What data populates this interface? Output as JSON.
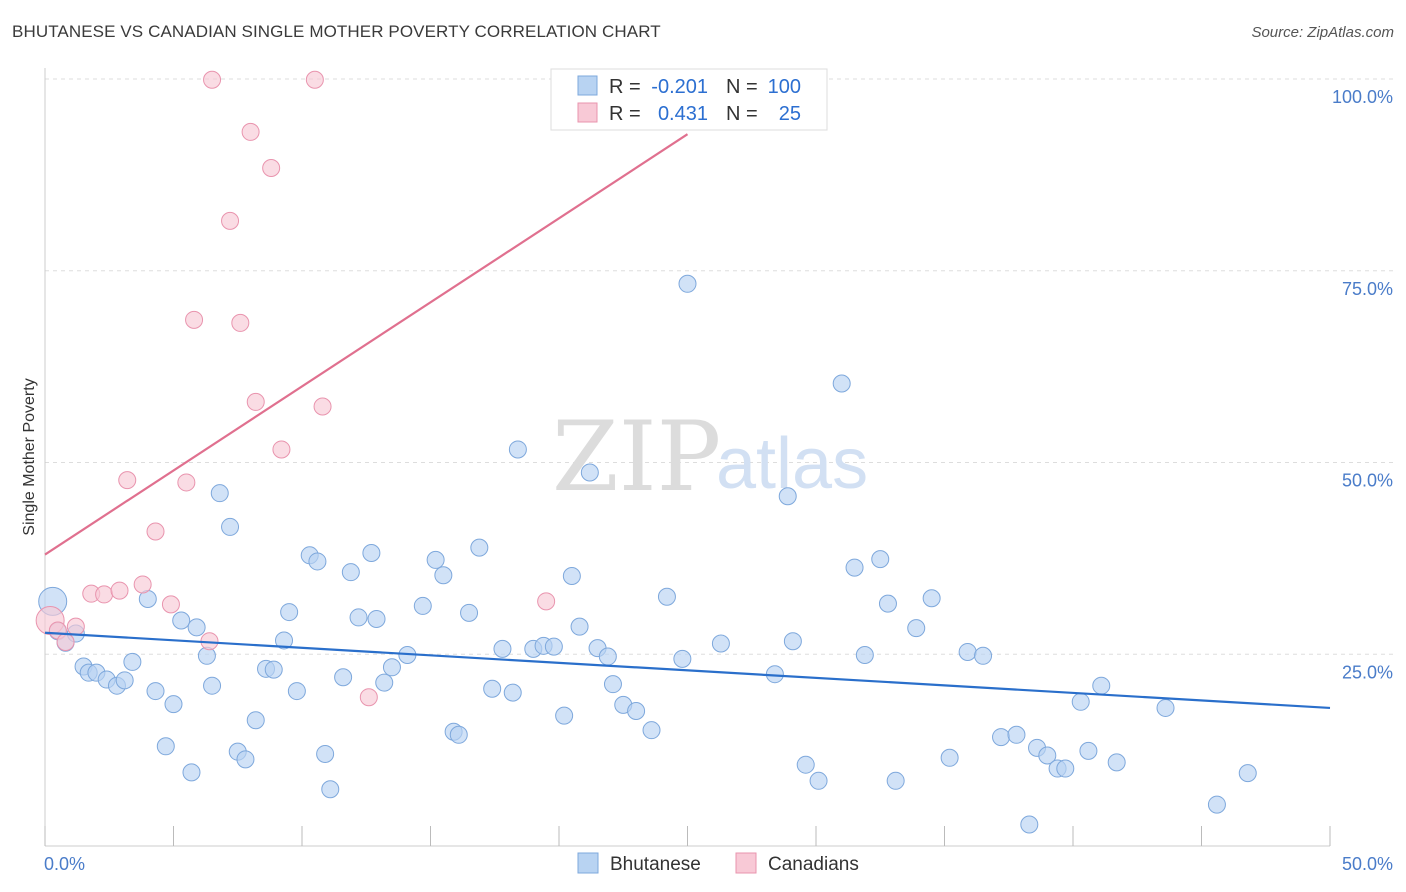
{
  "title": "BHUTANESE VS CANADIAN SINGLE MOTHER POVERTY CORRELATION CHART",
  "source": "Source: ZipAtlas.com",
  "watermark": {
    "zip": "ZIP",
    "atlas": "atlas"
  },
  "colors": {
    "blue_fill": "#b8d3f2",
    "blue_stroke": "#7ea8dc",
    "blue_line": "#2a6fcb",
    "pink_fill": "#f8c9d6",
    "pink_stroke": "#e994ae",
    "pink_line": "#e0708f",
    "grid": "#dddddd",
    "tick_text": "#4a7cc9"
  },
  "legend": {
    "rows": [
      {
        "r_label": "R =",
        "r_value": "-0.201",
        "n_label": "N =",
        "n_value": "100"
      },
      {
        "r_label": "R =",
        "r_value": "0.431",
        "n_label": "N =",
        "n_value": "25"
      }
    ]
  },
  "bottom_legend": [
    "Bhutanese",
    "Canadians"
  ],
  "chart_data": {
    "type": "scatter",
    "title": "BHUTANESE VS CANADIAN SINGLE MOTHER POVERTY CORRELATION CHART",
    "xlabel": "",
    "ylabel": "Single Mother Poverty",
    "xlim": [
      0,
      50
    ],
    "ylim": [
      0,
      100
    ],
    "x_tick_labels": [
      "0.0%",
      "50.0%"
    ],
    "y_ticks": [
      25,
      50,
      75,
      100
    ],
    "y_tick_labels": [
      "25.0%",
      "50.0%",
      "75.0%",
      "100.0%"
    ],
    "grid": true,
    "series": [
      {
        "name": "Bhutanese",
        "r": -0.201,
        "n": 100,
        "trend": {
          "x": [
            0,
            50
          ],
          "y": [
            27.8,
            18.0
          ]
        },
        "points": [
          [
            0.3,
            31.9
          ],
          [
            0.5,
            28.0
          ],
          [
            0.8,
            26.5
          ],
          [
            1.2,
            27.7
          ],
          [
            1.5,
            23.4
          ],
          [
            1.7,
            22.6
          ],
          [
            2.0,
            22.6
          ],
          [
            2.4,
            21.7
          ],
          [
            2.8,
            20.9
          ],
          [
            3.1,
            21.6
          ],
          [
            3.4,
            24.0
          ],
          [
            4.0,
            32.2
          ],
          [
            4.3,
            20.2
          ],
          [
            4.7,
            13.0
          ],
          [
            5.0,
            18.5
          ],
          [
            5.3,
            29.4
          ],
          [
            5.7,
            9.6
          ],
          [
            5.9,
            28.5
          ],
          [
            6.3,
            24.8
          ],
          [
            6.5,
            20.9
          ],
          [
            6.8,
            46.0
          ],
          [
            7.2,
            41.6
          ],
          [
            7.5,
            12.3
          ],
          [
            7.8,
            11.3
          ],
          [
            8.2,
            16.4
          ],
          [
            8.6,
            23.1
          ],
          [
            8.9,
            23.0
          ],
          [
            9.3,
            26.8
          ],
          [
            9.5,
            30.5
          ],
          [
            9.8,
            20.2
          ],
          [
            10.3,
            37.9
          ],
          [
            10.6,
            37.1
          ],
          [
            10.9,
            12.0
          ],
          [
            11.1,
            7.4
          ],
          [
            11.6,
            22.0
          ],
          [
            11.9,
            35.7
          ],
          [
            12.2,
            29.8
          ],
          [
            12.7,
            38.2
          ],
          [
            12.9,
            29.6
          ],
          [
            13.2,
            21.3
          ],
          [
            13.5,
            23.3
          ],
          [
            14.1,
            24.9
          ],
          [
            14.7,
            31.3
          ],
          [
            15.2,
            37.3
          ],
          [
            15.5,
            35.3
          ],
          [
            15.9,
            14.9
          ],
          [
            16.1,
            14.5
          ],
          [
            16.5,
            30.4
          ],
          [
            16.9,
            38.9
          ],
          [
            17.4,
            20.5
          ],
          [
            17.8,
            25.7
          ],
          [
            18.2,
            20.0
          ],
          [
            18.4,
            51.7
          ],
          [
            19.0,
            25.7
          ],
          [
            19.4,
            26.1
          ],
          [
            19.8,
            26.0
          ],
          [
            20.2,
            17.0
          ],
          [
            20.5,
            35.2
          ],
          [
            20.8,
            28.6
          ],
          [
            21.2,
            48.7
          ],
          [
            21.5,
            25.8
          ],
          [
            21.9,
            24.7
          ],
          [
            22.1,
            21.1
          ],
          [
            22.5,
            18.4
          ],
          [
            23.0,
            17.6
          ],
          [
            23.6,
            15.1
          ],
          [
            24.2,
            32.5
          ],
          [
            24.8,
            24.4
          ],
          [
            25.0,
            73.3
          ],
          [
            26.3,
            26.4
          ],
          [
            28.4,
            22.4
          ],
          [
            28.9,
            45.6
          ],
          [
            29.1,
            26.7
          ],
          [
            29.6,
            10.6
          ],
          [
            30.1,
            8.5
          ],
          [
            31.0,
            60.3
          ],
          [
            31.5,
            36.3
          ],
          [
            31.9,
            24.9
          ],
          [
            32.5,
            37.4
          ],
          [
            32.8,
            31.6
          ],
          [
            33.1,
            8.5
          ],
          [
            33.9,
            28.4
          ],
          [
            34.5,
            32.3
          ],
          [
            35.2,
            11.5
          ],
          [
            35.9,
            25.3
          ],
          [
            36.5,
            24.8
          ],
          [
            37.2,
            14.2
          ],
          [
            37.8,
            14.5
          ],
          [
            38.3,
            2.8
          ],
          [
            38.6,
            12.8
          ],
          [
            39.0,
            11.8
          ],
          [
            39.4,
            10.1
          ],
          [
            39.7,
            10.1
          ],
          [
            40.3,
            18.8
          ],
          [
            40.6,
            12.4
          ],
          [
            41.1,
            20.9
          ],
          [
            41.7,
            10.9
          ],
          [
            43.6,
            18.0
          ],
          [
            45.6,
            5.4
          ],
          [
            46.8,
            9.5
          ]
        ]
      },
      {
        "name": "Canadians",
        "r": 0.431,
        "n": 25,
        "trend": {
          "x": [
            0,
            25
          ],
          "y": [
            38.0,
            92.8
          ]
        },
        "points": [
          [
            0.2,
            29.4
          ],
          [
            0.5,
            28.1
          ],
          [
            0.8,
            26.6
          ],
          [
            1.2,
            28.6
          ],
          [
            1.8,
            32.9
          ],
          [
            2.3,
            32.8
          ],
          [
            2.9,
            33.3
          ],
          [
            3.2,
            47.7
          ],
          [
            3.8,
            34.1
          ],
          [
            4.3,
            41.0
          ],
          [
            4.9,
            31.5
          ],
          [
            5.5,
            47.4
          ],
          [
            5.8,
            68.6
          ],
          [
            6.4,
            26.7
          ],
          [
            6.5,
            99.9
          ],
          [
            7.2,
            81.5
          ],
          [
            7.6,
            68.2
          ],
          [
            8.0,
            93.1
          ],
          [
            8.2,
            57.9
          ],
          [
            8.8,
            88.4
          ],
          [
            9.2,
            51.7
          ],
          [
            10.5,
            99.9
          ],
          [
            10.8,
            57.3
          ],
          [
            12.6,
            19.4
          ],
          [
            19.5,
            31.9
          ]
        ]
      }
    ]
  }
}
